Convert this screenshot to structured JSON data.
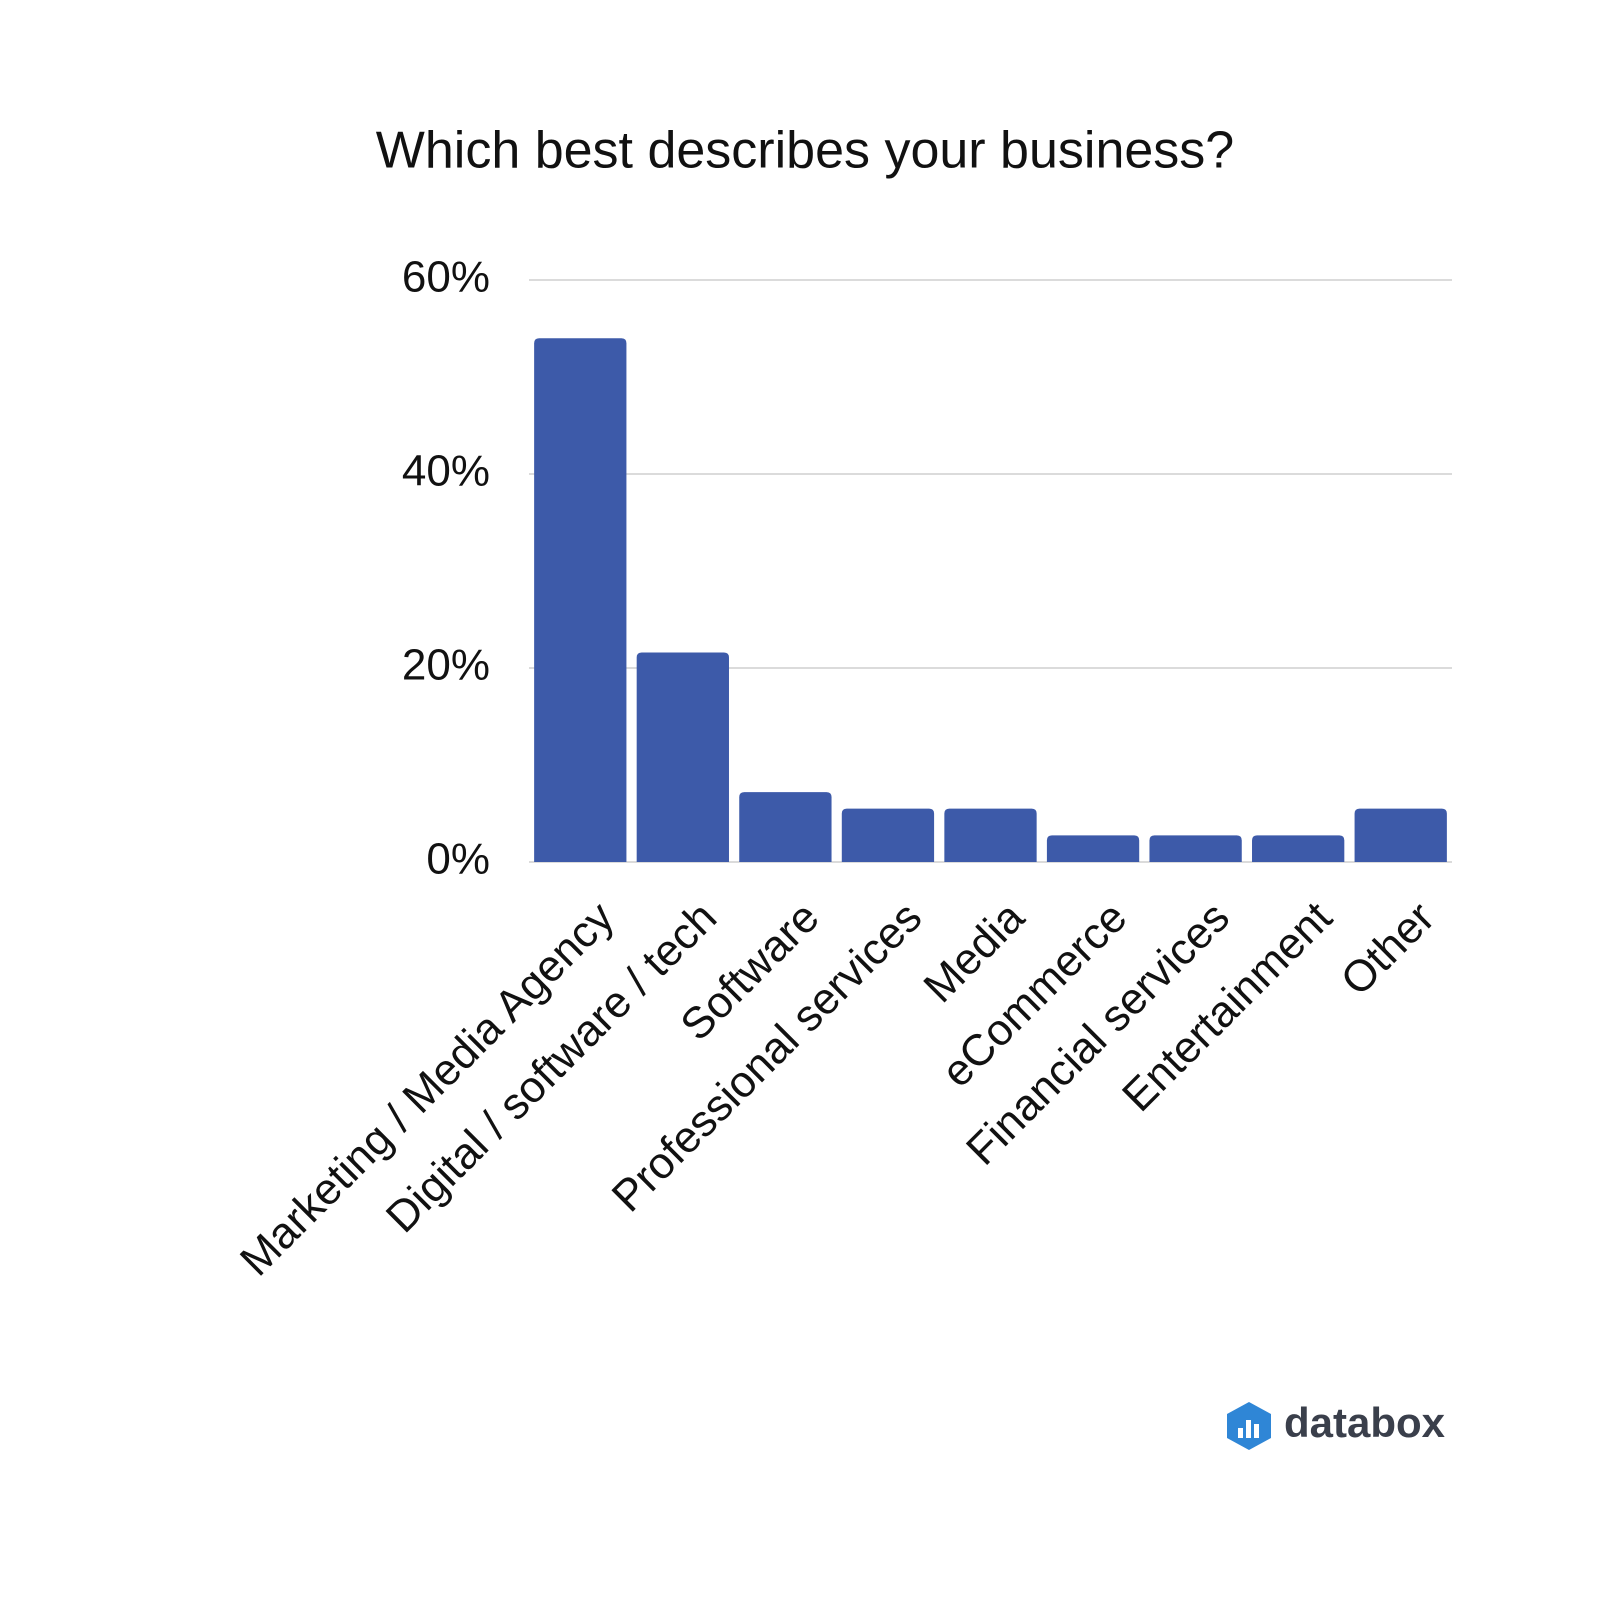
{
  "chart_data": {
    "type": "bar",
    "title": "Which best describes your business?",
    "categories": [
      "Marketing / Media Agency",
      "Digital / software / tech",
      "Software",
      "Professional services",
      "Media",
      "eCommerce",
      "Financial services",
      "Entertainment",
      "Other"
    ],
    "values": [
      54,
      21.6,
      7.2,
      5.5,
      5.5,
      2.75,
      2.75,
      2.75,
      5.5
    ],
    "color": "#3d5aa9",
    "ylim": [
      0,
      60
    ],
    "yticks": [
      {
        "value": 0,
        "label": "0%"
      },
      {
        "value": 20,
        "label": "20%"
      },
      {
        "value": 40,
        "label": "40%"
      },
      {
        "value": 60,
        "label": "60%"
      }
    ],
    "grid": true,
    "brand": "databox"
  }
}
